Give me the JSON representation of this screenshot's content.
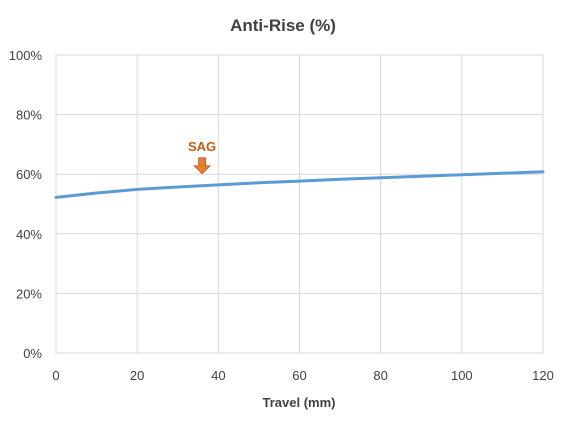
{
  "chart_data": {
    "type": "line",
    "title": "Anti-Rise (%)",
    "xlabel": "Travel (mm)",
    "ylabel": "",
    "xlim": [
      0,
      120
    ],
    "ylim": [
      0,
      100
    ],
    "x_ticks": [
      "0",
      "20",
      "40",
      "60",
      "80",
      "100",
      "120"
    ],
    "y_ticks": [
      "0%",
      "20%",
      "40%",
      "60%",
      "80%",
      "100%"
    ],
    "grid": true,
    "series": [
      {
        "color": "#5b9bd5",
        "x": [
          0,
          10,
          20,
          30,
          40,
          50,
          60,
          70,
          80,
          90,
          100,
          110,
          120
        ],
        "y": [
          52.2,
          53.7,
          54.9,
          55.7,
          56.4,
          57.1,
          57.7,
          58.3,
          58.8,
          59.3,
          59.8,
          60.3,
          60.8
        ]
      }
    ],
    "annotations": [
      {
        "text": "SAG",
        "x": 36,
        "color": "#c55a11",
        "arrow_color": "#ed7d31"
      }
    ]
  }
}
